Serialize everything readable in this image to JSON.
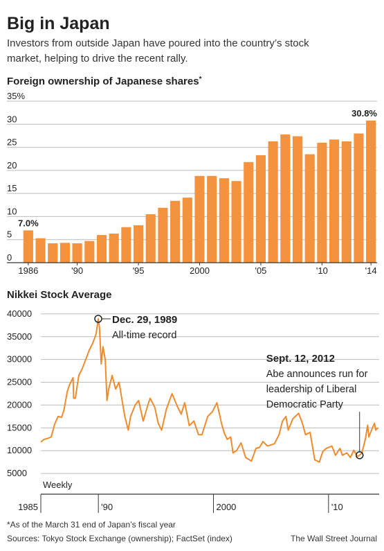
{
  "header": {
    "title": "Big in Japan",
    "subtitle": [
      "Investors from outside Japan have poured into the country’s stock",
      "market, helping to drive the recent rally."
    ]
  },
  "chart_data": [
    {
      "type": "bar",
      "title": "Foreign ownership of Japanese shares",
      "title_note": "*",
      "categories": [
        "1986",
        null,
        null,
        null,
        "'90",
        null,
        null,
        null,
        null,
        "'95",
        null,
        null,
        null,
        null,
        "2000",
        null,
        null,
        null,
        null,
        "'05",
        null,
        null,
        null,
        null,
        "'10",
        null,
        null,
        null,
        "'14"
      ],
      "values": [
        7.0,
        5.3,
        4.2,
        4.3,
        4.2,
        4.7,
        6.0,
        6.3,
        7.7,
        8.1,
        10.5,
        11.9,
        13.4,
        14.1,
        18.8,
        18.8,
        18.3,
        17.7,
        21.8,
        23.3,
        26.3,
        27.8,
        27.4,
        23.5,
        26.0,
        26.7,
        26.3,
        28.0,
        30.8
      ],
      "value_labels": [
        "7.0%",
        null,
        null,
        null,
        null,
        null,
        null,
        null,
        null,
        null,
        null,
        null,
        null,
        null,
        null,
        null,
        null,
        null,
        null,
        null,
        null,
        null,
        null,
        null,
        null,
        null,
        null,
        null,
        "30.8%"
      ],
      "color": "#f5923e",
      "ylim": [
        0,
        35
      ],
      "yticks": [
        0,
        5,
        10,
        15,
        20,
        25,
        30,
        {
          "value": 35,
          "label": "35%"
        }
      ],
      "grid": true
    },
    {
      "type": "line",
      "title": "Nikkei Stock Average",
      "x": [
        1985.0,
        1985.3,
        1985.6,
        1985.9,
        1986.2,
        1986.5,
        1986.8,
        1987.0,
        1987.3,
        1987.5,
        1987.8,
        1987.85,
        1988.0,
        1988.3,
        1988.6,
        1988.9,
        1989.2,
        1989.5,
        1989.8,
        1989.99,
        1990.1,
        1990.25,
        1990.4,
        1990.6,
        1990.75,
        1990.9,
        1991.2,
        1991.5,
        1991.8,
        1992.0,
        1992.3,
        1992.6,
        1992.8,
        1993.2,
        1993.5,
        1993.9,
        1994.3,
        1994.5,
        1994.9,
        1995.2,
        1995.5,
        1995.9,
        1996.4,
        1996.9,
        1997.2,
        1997.5,
        1997.9,
        1998.3,
        1998.7,
        1999.0,
        1999.5,
        1999.9,
        2000.3,
        2000.7,
        2000.95,
        2001.2,
        2001.5,
        2001.7,
        2002.0,
        2002.4,
        2002.8,
        2003.3,
        2003.7,
        2004.0,
        2004.3,
        2004.7,
        2005.3,
        2005.7,
        2006.0,
        2006.3,
        2006.5,
        2006.9,
        2007.4,
        2007.7,
        2008.0,
        2008.4,
        2008.8,
        2009.2,
        2009.5,
        2009.8,
        2010.3,
        2010.6,
        2011.0,
        2011.2,
        2011.6,
        2011.9,
        2012.2,
        2012.5,
        2012.7,
        2012.9,
        2013.2,
        2013.4,
        2013.5,
        2013.9,
        2014.0,
        2014.1,
        2014.3
      ],
      "series": [
        {
          "name": "Weekly",
          "color": "#f08a2c",
          "values": [
            11900,
            12500,
            12700,
            13000,
            15800,
            17500,
            17300,
            18800,
            23000,
            24500,
            26000,
            21500,
            21500,
            26500,
            28000,
            30000,
            32000,
            33500,
            35500,
            38916,
            37000,
            29000,
            32800,
            30000,
            21000,
            23500,
            26500,
            23500,
            25000,
            22000,
            17500,
            14500,
            17500,
            20000,
            21000,
            16500,
            20000,
            21500,
            19500,
            16000,
            14500,
            19000,
            22500,
            19500,
            18000,
            20500,
            15500,
            16500,
            13500,
            13500,
            17500,
            18500,
            20500,
            16000,
            13800,
            12500,
            13000,
            9500,
            10000,
            11700,
            8500,
            7700,
            10500,
            10700,
            12000,
            11000,
            11500,
            13500,
            16500,
            17500,
            14500,
            17000,
            18200,
            16200,
            13500,
            14000,
            8000,
            7500,
            9800,
            10500,
            11000,
            9000,
            10500,
            9000,
            9500,
            8500,
            10100,
            8700,
            8995,
            9500,
            12500,
            15600,
            13000,
            15500,
            16000,
            14500,
            15000
          ]
        }
      ],
      "xlim": [
        1985,
        2014.4
      ],
      "xticks": [
        1985,
        {
          "value": 1990,
          "label": "'90"
        },
        2000,
        {
          "value": 2010,
          "label": "'10"
        }
      ],
      "ylim": [
        0,
        41500
      ],
      "yticks": [
        5000,
        10000,
        15000,
        20000,
        25000,
        30000,
        35000,
        40000
      ],
      "grid": true,
      "annotations": [
        {
          "x": 1989.99,
          "label": "Dec. 29, 1989",
          "text": [
            "All-time record"
          ]
        },
        {
          "x": 2012.7,
          "label": "Sept. 12, 2012",
          "text": [
            "Abe announces run for",
            "leadership of Liberal",
            "Democratic Party"
          ]
        }
      ]
    }
  ],
  "footer": {
    "note": "*As of the March 31 end of Japan’s fiscal year",
    "sources": "Sources: Tokyo Stock Exchange (ownership); FactSet (index)",
    "credit": "The Wall Street Journal"
  }
}
